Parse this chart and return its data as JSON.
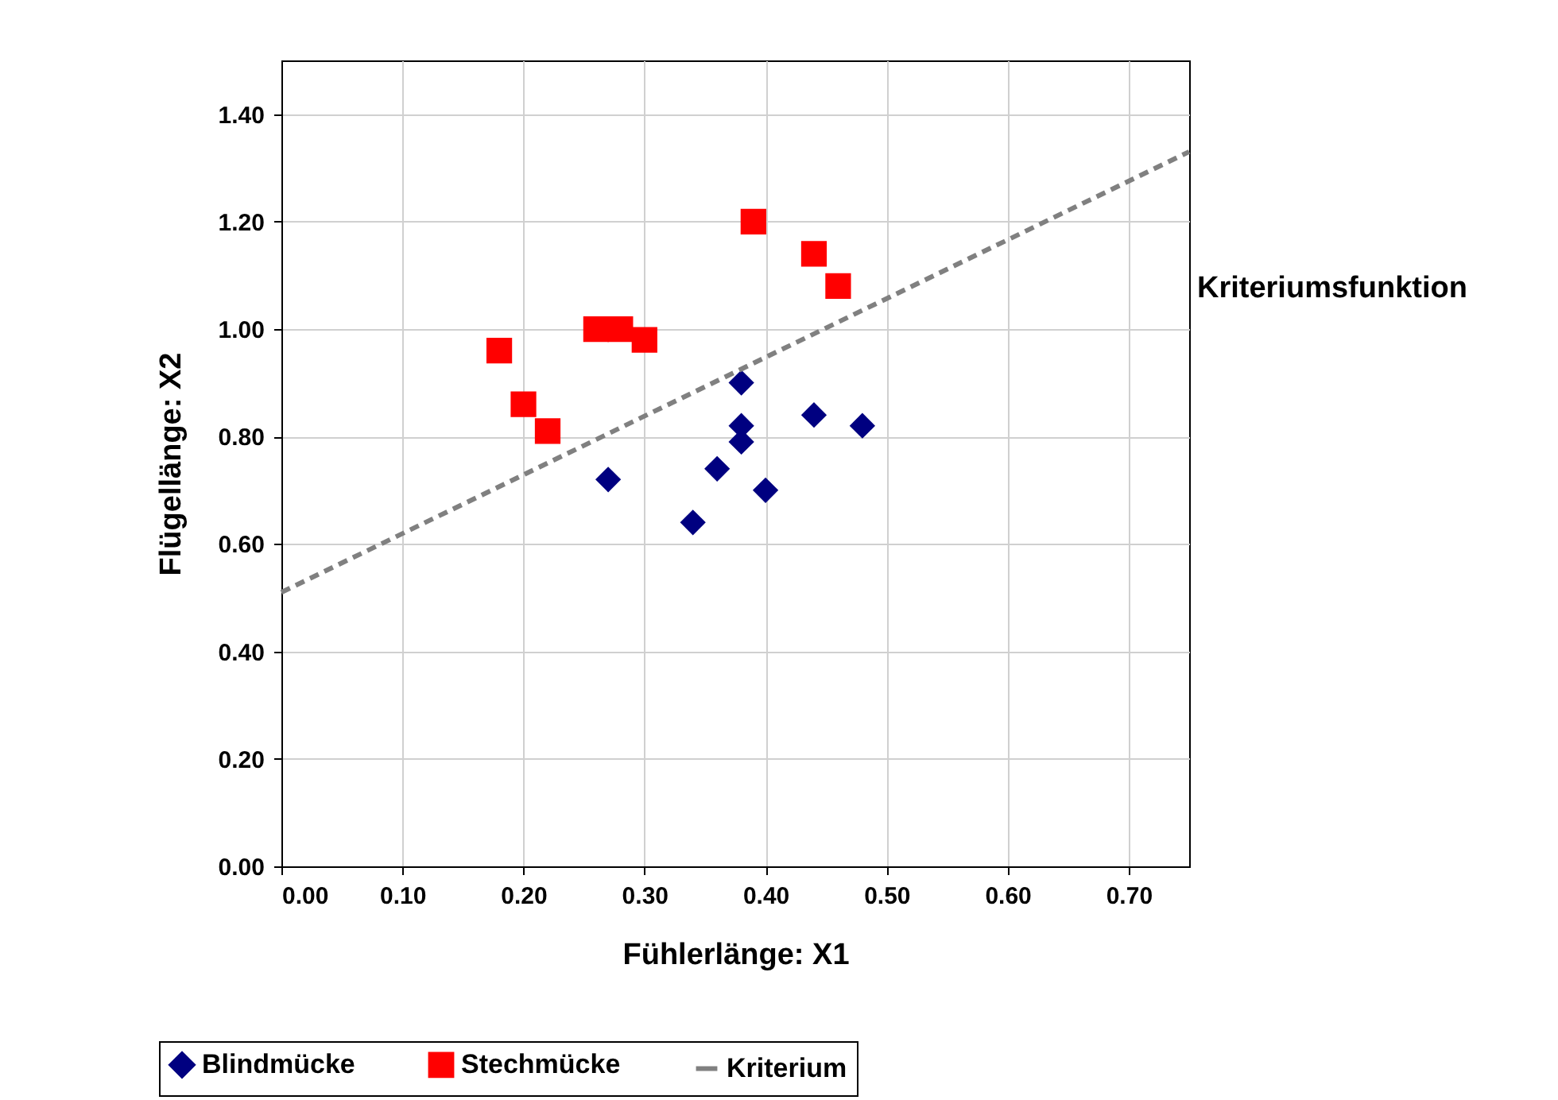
{
  "chart_data": {
    "type": "scatter",
    "xlabel": "Fühlerlänge: X1",
    "ylabel": "Flügellänge: X2",
    "xlim": [
      0,
      0.75
    ],
    "ylim": [
      0,
      1.5
    ],
    "xticks": [
      {
        "value": 0,
        "label": "0.00"
      },
      {
        "value": 0.1,
        "label": "0.10"
      },
      {
        "value": 0.2,
        "label": "0.20"
      },
      {
        "value": 0.3,
        "label": "0.30"
      },
      {
        "value": 0.4,
        "label": "0.40"
      },
      {
        "value": 0.5,
        "label": "0.50"
      },
      {
        "value": 0.6,
        "label": "0.60"
      },
      {
        "value": 0.7,
        "label": "0.70"
      }
    ],
    "yticks": [
      {
        "value": 0,
        "label": "0.00"
      },
      {
        "value": 0.2,
        "label": "0.20"
      },
      {
        "value": 0.4,
        "label": "0.40"
      },
      {
        "value": 0.6,
        "label": "0.60"
      },
      {
        "value": 0.8,
        "label": "0.80"
      },
      {
        "value": 1.0,
        "label": "1.00"
      },
      {
        "value": 1.2,
        "label": "1.20"
      },
      {
        "value": 1.4,
        "label": "1.40"
      }
    ],
    "grid": true,
    "legend": "bottom",
    "series": [
      {
        "name": "Blindmücke",
        "marker": "diamond",
        "color": "#000080",
        "x": [
          0.27,
          0.38,
          0.38,
          0.38,
          0.36,
          0.34,
          0.4,
          0.44,
          0.48
        ],
        "values": [
          0.72,
          0.9,
          0.82,
          0.79,
          0.74,
          0.64,
          0.7,
          0.84,
          0.82
        ]
      },
      {
        "name": "Stechmücke",
        "marker": "square",
        "color": "#ff0000",
        "x": [
          0.18,
          0.2,
          0.22,
          0.26,
          0.28,
          0.3,
          0.39,
          0.44,
          0.46
        ],
        "values": [
          0.96,
          0.86,
          0.81,
          1.0,
          1.0,
          0.98,
          1.2,
          1.14,
          1.08
        ]
      },
      {
        "name": "Kriterium",
        "type": "line",
        "line_style": "dashed",
        "color": "#808080",
        "x": [
          0,
          0.75
        ],
        "values": [
          0.51,
          1.33
        ]
      }
    ],
    "annotations": [
      "Kriteriumsfunktion"
    ]
  }
}
